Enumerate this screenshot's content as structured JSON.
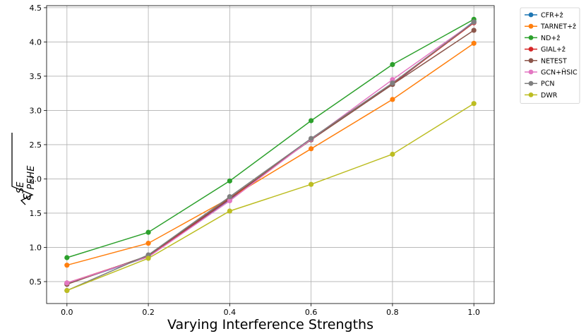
{
  "chart_data": {
    "type": "line",
    "title": "",
    "xlabel": "Varying Interference Strengths",
    "ylabel": "√ε_PEHE^SE",
    "ylabel_parts": {
      "base": "ε",
      "sub": "PEHE",
      "sup": "SE"
    },
    "x": [
      0.0,
      0.2,
      0.4,
      0.6,
      0.8,
      1.0
    ],
    "x_tick_labels": [
      "0.0",
      "0.2",
      "0.4",
      "0.6",
      "0.8",
      "1.0"
    ],
    "y_ticks": [
      0.5,
      1.0,
      1.5,
      2.0,
      2.5,
      3.0,
      3.5,
      4.0,
      4.5
    ],
    "y_tick_labels": [
      "0.5",
      "1.0",
      "1.5",
      "2.0",
      "2.5",
      "3.0",
      "3.5",
      "4.0",
      "4.5"
    ],
    "xlim": [
      -0.05,
      1.05
    ],
    "ylim": [
      0.18,
      4.53
    ],
    "grid": true,
    "legend_position": "outside top-right",
    "series": [
      {
        "name": "CFR+ẑ",
        "color": "#1f77b4",
        "values": [
          0.47,
          0.86,
          1.7,
          2.58,
          3.38,
          4.3
        ]
      },
      {
        "name": "TARNET+ẑ",
        "color": "#ff7f0e",
        "values": [
          0.74,
          1.06,
          1.72,
          2.44,
          3.16,
          3.98
        ]
      },
      {
        "name": "ND+ẑ",
        "color": "#2ca02c",
        "values": [
          0.85,
          1.22,
          1.97,
          2.85,
          3.67,
          4.33
        ]
      },
      {
        "name": "GIAL+ẑ",
        "color": "#d62728",
        "values": [
          0.48,
          0.87,
          1.71,
          2.58,
          3.39,
          4.28
        ]
      },
      {
        "name": "NETEST",
        "color": "#8c564b",
        "values": [
          0.46,
          0.88,
          1.72,
          2.57,
          3.38,
          4.17
        ]
      },
      {
        "name": "GCN+ĤSIC",
        "color": "#e377c2",
        "values": [
          0.48,
          0.86,
          1.68,
          2.58,
          3.45,
          4.29
        ]
      },
      {
        "name": "PCN",
        "color": "#7f7f7f",
        "values": [
          0.37,
          0.89,
          1.74,
          2.59,
          3.4,
          4.29
        ]
      },
      {
        "name": "DWR",
        "color": "#bcbd22",
        "values": [
          0.37,
          0.84,
          1.53,
          1.92,
          2.36,
          3.1
        ]
      }
    ]
  }
}
